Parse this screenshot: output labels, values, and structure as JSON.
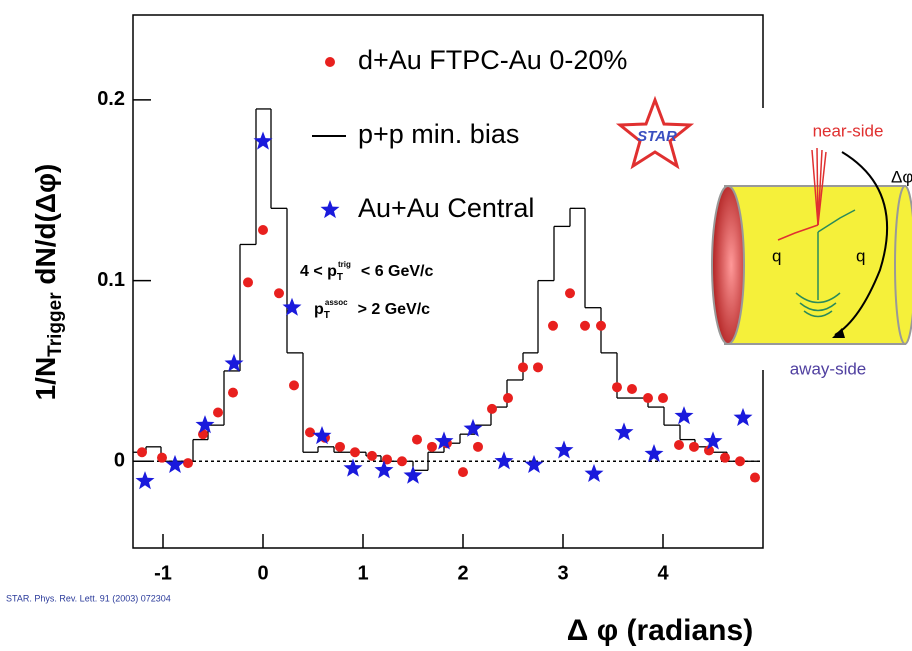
{
  "chart_data": {
    "type": "scatter",
    "x_label": "Δ φ (radians)",
    "y_label": {
      "main": "1/N",
      "sub": "Trigger",
      "rest": " dN/d(Δφ)"
    },
    "xlim": [
      -1.3,
      5.0
    ],
    "ylim": [
      -0.048,
      0.247
    ],
    "xticks": [
      -1,
      0,
      1,
      2,
      3,
      4
    ],
    "yticks": [
      0,
      0.1,
      0.2
    ],
    "hline": 0,
    "annotations": [
      {
        "text": "4 < p",
        "sub": "T",
        "sup": "trig",
        "rest": "< 6 GeV/c"
      },
      {
        "text": "p",
        "sub": "T",
        "sup": "assoc",
        "rest": "> 2 GeV/c"
      }
    ],
    "series": [
      {
        "name": "d+Au FTPC-Au 0-20%",
        "type": "scatter",
        "marker": "circle",
        "color": "#e8201e",
        "x": [
          -1.21,
          -1.01,
          -0.75,
          -0.6,
          -0.45,
          -0.3,
          -0.15,
          0,
          0.16,
          0.31,
          0.47,
          0.62,
          0.77,
          0.92,
          1.09,
          1.24,
          1.39,
          1.54,
          1.69,
          1.84,
          2.0,
          2.15,
          2.29,
          2.45,
          2.6,
          2.75,
          2.9,
          3.07,
          3.22,
          3.38,
          3.54,
          3.69,
          3.85,
          4.0,
          4.16,
          4.31,
          4.46,
          4.62,
          4.77,
          4.92
        ],
        "values": [
          0.005,
          0.002,
          -0.001,
          0.015,
          0.027,
          0.038,
          0.099,
          0.128,
          0.093,
          0.042,
          0.016,
          0.013,
          0.008,
          0.005,
          0.003,
          0.001,
          0.0,
          0.012,
          0.008,
          0.01,
          -0.006,
          0.008,
          0.029,
          0.035,
          0.052,
          0.052,
          0.075,
          0.093,
          0.075,
          0.075,
          0.041,
          0.04,
          0.035,
          0.035,
          0.009,
          0.008,
          0.006,
          0.002,
          0.0,
          -0.009
        ]
      },
      {
        "name": "p+p min. bias",
        "type": "step",
        "color": "#000000",
        "bins": [
          -1.33,
          -1.17,
          -1.02,
          -0.86,
          -0.7,
          -0.55,
          -0.39,
          -0.23,
          -0.07,
          0.08,
          0.24,
          0.4,
          0.55,
          0.71,
          0.87,
          1.03,
          1.18,
          1.34,
          1.5,
          1.65,
          1.81,
          1.97,
          2.12,
          2.28,
          2.44,
          2.6,
          2.75,
          2.91,
          3.07,
          3.22,
          3.38,
          3.54,
          3.69,
          3.85,
          4.01,
          4.17,
          4.32,
          4.48,
          4.64,
          4.79,
          4.95
        ],
        "values": [
          0.005,
          0.008,
          0.0,
          0.0,
          0.012,
          0.02,
          0.05,
          0.12,
          0.195,
          0.14,
          0.06,
          0.005,
          0.008,
          0.005,
          0.005,
          0.003,
          0.0,
          0.0,
          -0.005,
          0.005,
          0.01,
          0.015,
          0.02,
          0.03,
          0.045,
          0.06,
          0.1,
          0.13,
          0.14,
          0.085,
          0.06,
          0.035,
          0.035,
          0.03,
          0.02,
          0.012,
          0.008,
          0.005,
          0.0,
          0.0
        ]
      },
      {
        "name": "Au+Au Central",
        "type": "scatter",
        "marker": "star",
        "color": "#1a1adc",
        "x": [
          -1.18,
          -0.88,
          -0.58,
          -0.29,
          0,
          0.29,
          0.59,
          0.9,
          1.21,
          1.5,
          1.81,
          2.1,
          2.41,
          2.71,
          3.01,
          3.31,
          3.61,
          3.91,
          4.21,
          4.5,
          4.8
        ],
        "values": [
          -0.011,
          -0.002,
          0.02,
          0.054,
          0.177,
          0.085,
          0.014,
          -0.004,
          -0.005,
          -0.008,
          0.011,
          0.018,
          0.0,
          -0.002,
          0.006,
          -0.007,
          0.016,
          0.004,
          0.025,
          0.011,
          0.024
        ]
      }
    ]
  },
  "logo": "STAR",
  "citation": "STAR. Phys. Rev. Lett. 91 (2003) 072304",
  "inset": {
    "near_side": "near-side",
    "away_side": "away-side",
    "dphi": "Δφ",
    "q_left": "q",
    "q_right": "q"
  }
}
